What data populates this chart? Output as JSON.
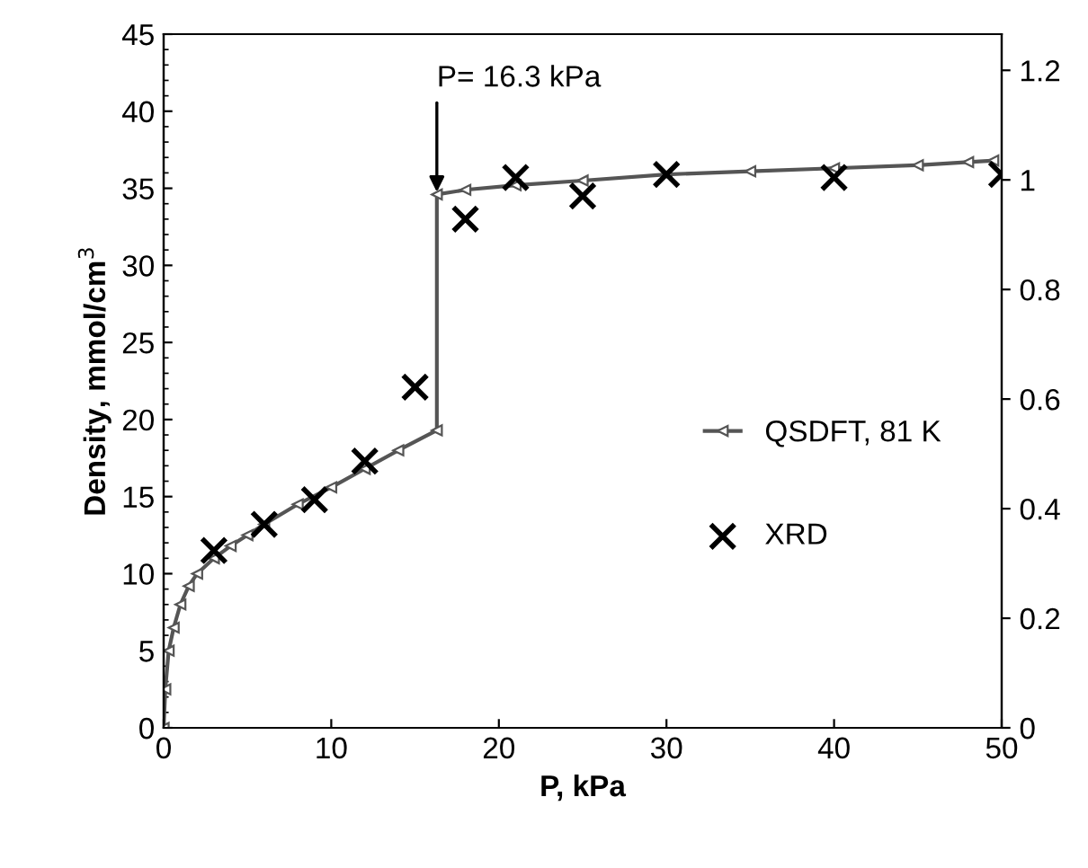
{
  "chart_data": {
    "type": "line",
    "xlabel": "P, kPa",
    "ylabel": "Density, mmol/cm$^{3}$",
    "xlim": [
      0,
      50
    ],
    "xticks": [
      0,
      10,
      20,
      30,
      40,
      50
    ],
    "ylim": [
      0,
      45
    ],
    "yticks": [
      0,
      5,
      10,
      15,
      20,
      25,
      30,
      35,
      40,
      45
    ],
    "y2lim": [
      0,
      1.266
    ],
    "y2ticks": [
      0,
      0.2,
      0.4,
      0.6,
      0.8,
      1,
      1.2
    ],
    "grid": false,
    "legend": "right",
    "annotations": [
      {
        "text": "P= 16.3 kPa",
        "x": 16.3,
        "y": 34.6
      }
    ],
    "series": [
      {
        "name": "QSDFT, 81 K",
        "color": "#555555",
        "marker": "triangle",
        "line_style": "solid",
        "x": [
          0,
          0.1,
          0.3,
          0.6,
          1,
          1.5,
          2,
          3,
          4,
          5,
          6,
          8,
          10,
          12,
          14,
          16.3,
          16.3,
          18,
          21,
          25,
          30,
          35,
          40,
          45,
          48,
          49.5
        ],
        "values": [
          0,
          2.5,
          5,
          6.5,
          8,
          9.2,
          10,
          11,
          11.8,
          12.5,
          13.2,
          14.5,
          15.6,
          16.8,
          18,
          19.3,
          34.6,
          34.9,
          35.2,
          35.5,
          35.9,
          36.1,
          36.3,
          36.5,
          36.7,
          36.8
        ]
      },
      {
        "name": "XRD",
        "type": "scatter",
        "color": "#000000",
        "marker": "cross",
        "x": [
          3,
          6,
          9,
          12,
          15,
          18,
          21,
          25,
          30,
          40,
          50
        ],
        "values": [
          11.5,
          13.2,
          14.8,
          17.3,
          22.1,
          33,
          35.7,
          34.5,
          35.9,
          35.7,
          35.9
        ]
      }
    ]
  }
}
